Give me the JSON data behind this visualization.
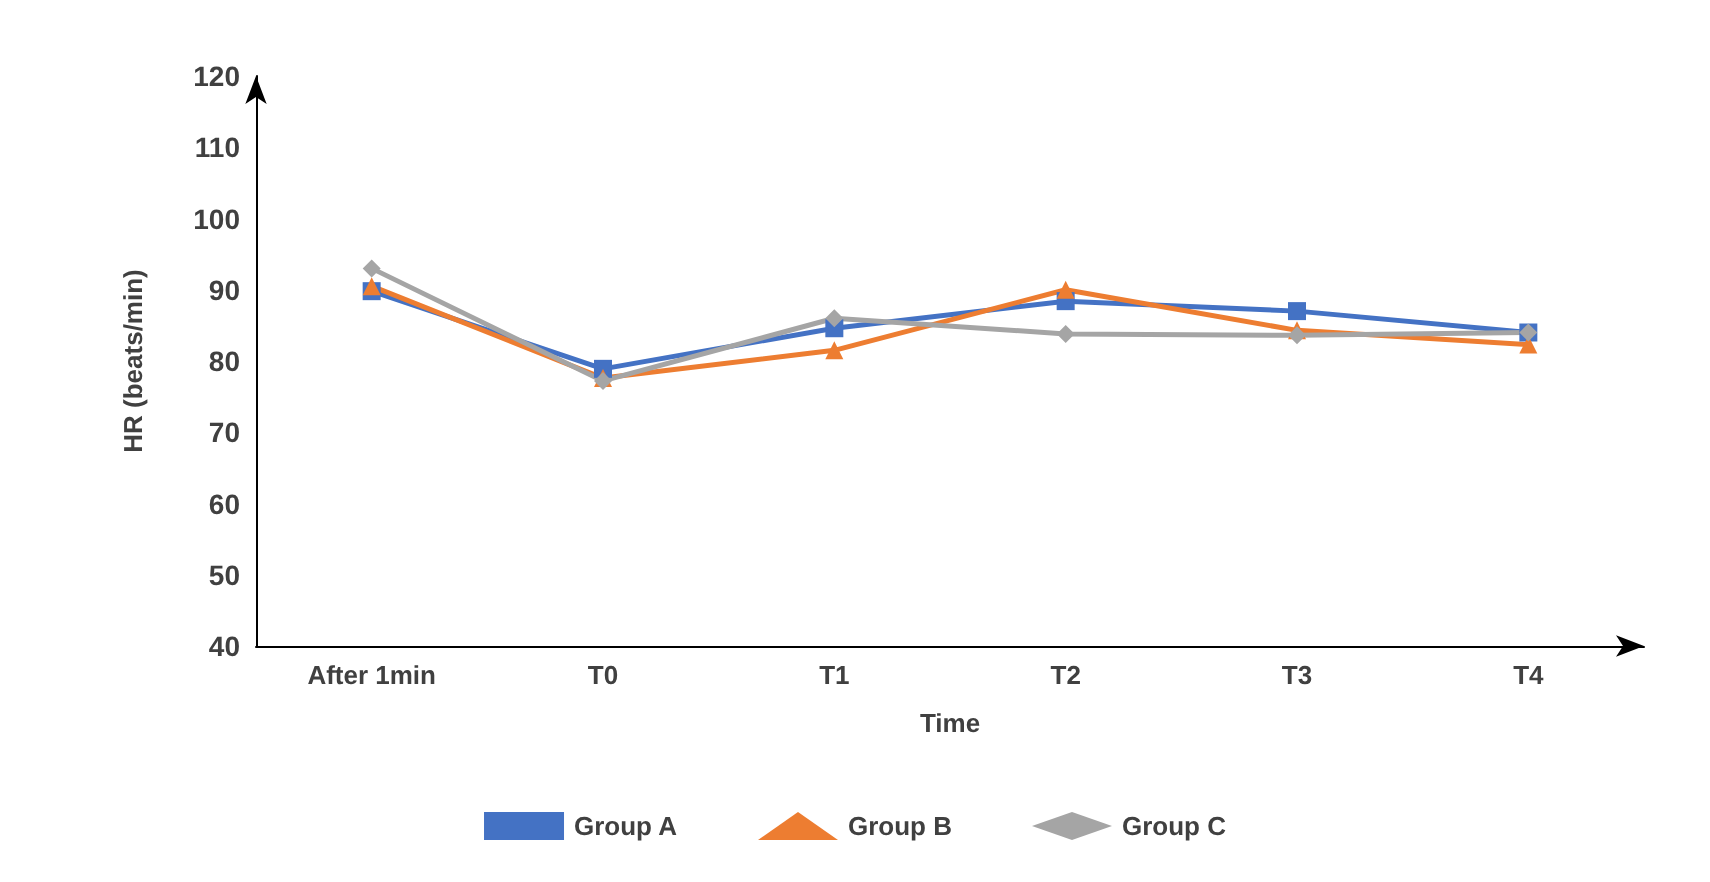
{
  "chart_data": {
    "type": "line",
    "xlabel": "Time",
    "ylabel": "HR (beats/min)",
    "categories": [
      "After 1min",
      "T0",
      "T1",
      "T2",
      "T3",
      "T4"
    ],
    "series": [
      {
        "name": "Group A",
        "color": "#4472c4",
        "marker": "square",
        "values": [
          89.8,
          78.9,
          84.6,
          88.4,
          87.0,
          84.0
        ]
      },
      {
        "name": "Group B",
        "color": "#ed7d31",
        "marker": "triangle",
        "values": [
          90.5,
          77.6,
          81.5,
          90.0,
          84.3,
          82.3
        ]
      },
      {
        "name": "Group C",
        "color": "#a5a5a5",
        "marker": "diamond",
        "values": [
          93.0,
          77.2,
          86.0,
          83.8,
          83.6,
          84.0
        ]
      }
    ],
    "ylim": [
      40,
      120
    ],
    "yticks": [
      40,
      50,
      60,
      70,
      80,
      90,
      100,
      110,
      120
    ],
    "grid": false,
    "legend": "bottom"
  }
}
